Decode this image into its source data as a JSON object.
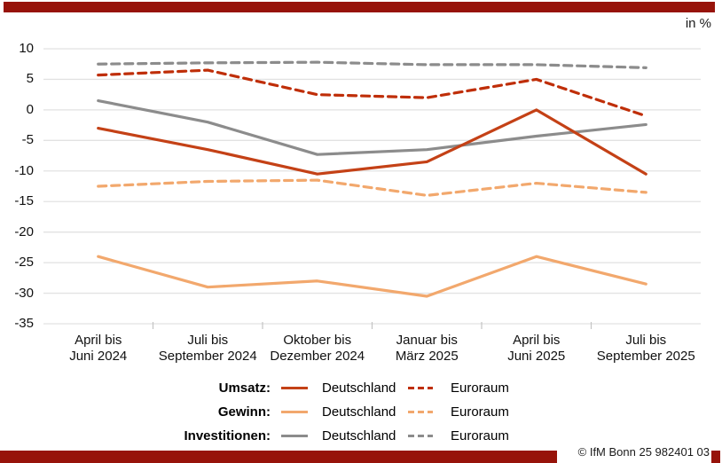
{
  "header": {
    "unit_label": "in %"
  },
  "accent_color": "#97130a",
  "chart_data": {
    "type": "line",
    "title": "",
    "unit": "in %",
    "grid": true,
    "ylim": [
      -35,
      10
    ],
    "y_ticks": [
      10,
      5,
      0,
      -5,
      -10,
      -15,
      -20,
      -25,
      -30,
      -35
    ],
    "categories": [
      "April bis\nJuni 2024",
      "Juli bis\nSeptember 2024",
      "Oktober bis\nDezember 2024",
      "Januar bis\nMärz 2025",
      "April bis\nJuni 2025",
      "Juli bis\nSeptember 2025"
    ],
    "series": [
      {
        "name": "Umsatz Deutschland",
        "group": "Umsatz",
        "region": "Deutschland",
        "style": "solid",
        "color": "#c44116",
        "values": [
          -3,
          -6.5,
          -10.5,
          -8.5,
          0,
          -10.5
        ]
      },
      {
        "name": "Umsatz Euroraum",
        "group": "Umsatz",
        "region": "Euroraum",
        "style": "dashed",
        "color": "#bf2e08",
        "values": [
          5.7,
          6.5,
          2.5,
          2,
          5,
          -1
        ]
      },
      {
        "name": "Gewinn Deutschland",
        "group": "Gewinn",
        "region": "Deutschland",
        "style": "solid",
        "color": "#f2a86d",
        "values": [
          -24,
          -29,
          -28,
          -30.5,
          -24,
          -28.5
        ]
      },
      {
        "name": "Gewinn Euroraum",
        "group": "Gewinn",
        "region": "Euroraum",
        "style": "dashed",
        "color": "#f2a86d",
        "values": [
          -12.5,
          -11.7,
          -11.5,
          -14,
          -12,
          -13.5
        ]
      },
      {
        "name": "Investitionen Deutschland",
        "group": "Investitionen",
        "region": "Deutschland",
        "style": "solid",
        "color": "#8c8c8c",
        "values": [
          1.5,
          -2,
          -7.3,
          -6.5,
          -4.3,
          -2.4
        ]
      },
      {
        "name": "Investitionen Euroraum",
        "group": "Investitionen",
        "region": "Euroraum",
        "style": "dashed",
        "color": "#8c8c8c",
        "values": [
          7.5,
          7.7,
          7.8,
          7.4,
          7.4,
          6.9
        ]
      }
    ],
    "legend_position": "bottom"
  },
  "legend": {
    "rows": [
      {
        "category": "Umsatz:",
        "solid_label": "Deutschland",
        "dashed_label": "Euroraum",
        "solid_color": "#c44116",
        "dashed_color": "#bf2e08"
      },
      {
        "category": "Gewinn:",
        "solid_label": "Deutschland",
        "dashed_label": "Euroraum",
        "solid_color": "#f2a86d",
        "dashed_color": "#f2a86d"
      },
      {
        "category": "Investitionen:",
        "solid_label": "Deutschland",
        "dashed_label": "Euroraum",
        "solid_color": "#8c8c8c",
        "dashed_color": "#8c8c8c"
      }
    ]
  },
  "footer": {
    "copyright": "© IfM Bonn 25 982401 03"
  }
}
